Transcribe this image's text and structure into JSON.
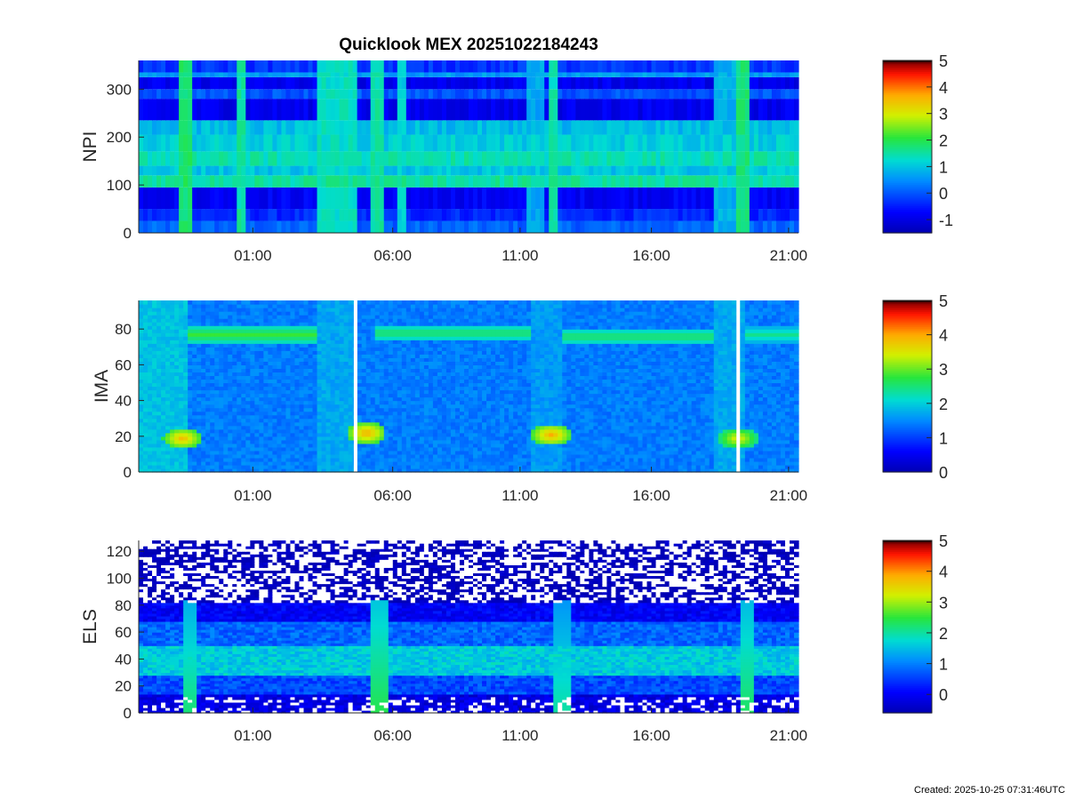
{
  "chart_data": [
    {
      "type": "heatmap",
      "title": "Quicklook MEX 20251022184243",
      "ylabel": "NPI",
      "ylim": [
        0,
        360
      ],
      "yticks": [
        0,
        100,
        200,
        300
      ],
      "xtick_labels": [
        "01:00",
        "06:00",
        "11:00",
        "16:00",
        "21:00"
      ],
      "colorbar": {
        "ticks": [
          -1,
          0,
          1,
          2,
          3,
          4,
          5
        ],
        "range": [
          -1.5,
          5
        ]
      },
      "rows": [
        {
          "y0": 0,
          "y1": 25,
          "value": 0.1
        },
        {
          "y0": 25,
          "y1": 50,
          "value": -0.4
        },
        {
          "y0": 50,
          "y1": 95,
          "value": -0.8
        },
        {
          "y0": 95,
          "y1": 120,
          "value": 1.5
        },
        {
          "y0": 120,
          "y1": 140,
          "value": 1.0
        },
        {
          "y0": 140,
          "y1": 170,
          "value": 1.4
        },
        {
          "y0": 170,
          "y1": 205,
          "value": 1.1
        },
        {
          "y0": 205,
          "y1": 235,
          "value": 0.9
        },
        {
          "y0": 235,
          "y1": 280,
          "value": -0.9
        },
        {
          "y0": 280,
          "y1": 300,
          "value": 0.0
        },
        {
          "y0": 300,
          "y1": 325,
          "value": -0.9
        },
        {
          "y0": 325,
          "y1": 335,
          "value": 0.6
        },
        {
          "y0": 335,
          "y1": 360,
          "value": -0.3
        }
      ],
      "features": [
        {
          "x0": 0.06,
          "x1": 0.075,
          "value": 1.8
        },
        {
          "x0": 0.145,
          "x1": 0.16,
          "value": 1.5
        },
        {
          "x0": 0.265,
          "x1": 0.33,
          "value": 1.3
        },
        {
          "x0": 0.345,
          "x1": 0.37,
          "value": 1.5
        },
        {
          "x0": 0.39,
          "x1": 0.405,
          "value": 1.1
        },
        {
          "x0": 0.585,
          "x1": 0.61,
          "value": 0.7
        },
        {
          "x0": 0.615,
          "x1": 0.635,
          "value": 1.4
        },
        {
          "x0": 0.865,
          "x1": 0.9,
          "value": 0.8
        },
        {
          "x0": 0.905,
          "x1": 0.925,
          "value": 1.7
        }
      ]
    },
    {
      "type": "heatmap",
      "ylabel": "IMA",
      "ylim": [
        0,
        96
      ],
      "yticks": [
        0,
        20,
        40,
        60,
        80
      ],
      "xtick_labels": [
        "01:00",
        "06:00",
        "11:00",
        "16:00",
        "21:00"
      ],
      "colorbar": {
        "ticks": [
          0,
          1,
          2,
          3,
          4,
          5
        ],
        "range": [
          0,
          5
        ]
      },
      "background_value": 1.4,
      "bright_intervals": [
        {
          "x0": 0.0,
          "x1": 0.07,
          "value": 1.9
        },
        {
          "x0": 0.265,
          "x1": 0.33,
          "value": 1.7
        },
        {
          "x0": 0.59,
          "x1": 0.64,
          "value": 1.6
        },
        {
          "x0": 0.865,
          "x1": 0.915,
          "value": 1.7
        }
      ],
      "ion_band": [
        {
          "x0": 0.07,
          "x1": 0.265,
          "y": 77,
          "value": 2.8
        },
        {
          "x0": 0.355,
          "x1": 0.59,
          "y": 78,
          "value": 2.6
        },
        {
          "x0": 0.64,
          "x1": 0.865,
          "y": 76,
          "value": 2.6
        },
        {
          "x0": 0.915,
          "x1": 1.0,
          "y": 77,
          "value": 2.4
        }
      ],
      "peaks": [
        {
          "x": 0.063,
          "y": 19,
          "value": 3.9
        },
        {
          "x": 0.342,
          "y": 22,
          "value": 4.0
        },
        {
          "x": 0.622,
          "y": 21,
          "value": 4.0
        },
        {
          "x": 0.905,
          "y": 19,
          "value": 3.6
        }
      ],
      "gaps": [
        0.326,
        0.906
      ]
    },
    {
      "type": "heatmap",
      "ylabel": "ELS",
      "ylim": [
        0,
        128
      ],
      "yticks": [
        0,
        20,
        40,
        60,
        80,
        100,
        120
      ],
      "xtick_labels": [
        "01:00",
        "06:00",
        "11:00",
        "16:00",
        "21:00"
      ],
      "colorbar": {
        "ticks": [
          0,
          1,
          2,
          3,
          4,
          5
        ],
        "range": [
          -0.6,
          5
        ]
      },
      "bands": [
        {
          "y0": 0,
          "y1": 15,
          "value": -0.2
        },
        {
          "y0": 15,
          "y1": 28,
          "value": 0.6
        },
        {
          "y0": 28,
          "y1": 50,
          "value": 1.6
        },
        {
          "y0": 50,
          "y1": 68,
          "value": 0.8
        },
        {
          "y0": 68,
          "y1": 82,
          "value": 0.0
        },
        {
          "y0": 82,
          "y1": 128,
          "value": -0.6
        }
      ],
      "bursts": [
        {
          "x": 0.075,
          "value": 2.2
        },
        {
          "x": 0.36,
          "value": 2.4
        },
        {
          "x": 0.64,
          "value": 2.0
        },
        {
          "x": 0.92,
          "value": 2.3
        }
      ]
    }
  ],
  "footer": {
    "created": "Created: 2025-10-25 07:31:46UTC"
  }
}
